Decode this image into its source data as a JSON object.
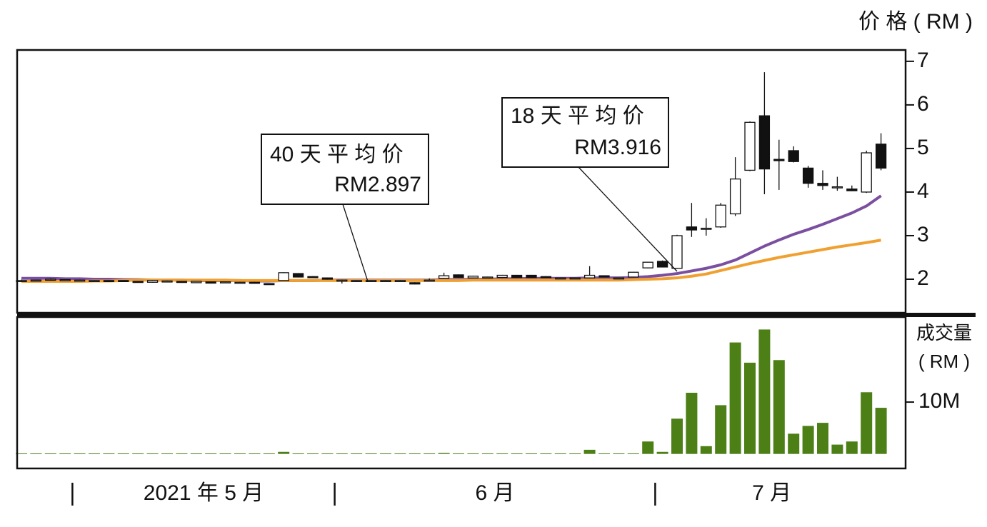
{
  "chart_data": {
    "type": "candlestick",
    "price_axis_label": "价 格 ( RM )",
    "volume_axis_label": [
      "成交量",
      "( RM )"
    ],
    "categories": [
      null,
      null,
      null,
      null,
      null,
      null,
      null,
      null,
      null,
      null,
      null,
      null,
      null,
      null,
      null,
      null,
      null,
      null,
      null,
      null,
      null,
      null,
      null,
      null,
      null,
      null,
      null,
      null,
      null,
      null,
      null,
      null,
      null,
      null,
      null,
      null,
      null,
      null,
      null,
      null,
      null,
      null,
      null,
      null,
      null,
      null,
      null,
      null,
      null,
      null,
      null,
      null,
      null,
      null,
      null,
      null,
      null,
      null,
      null,
      null
    ],
    "periods": [
      {
        "label": "2021 年 5 月",
        "from": 4,
        "to": 21
      },
      {
        "label": "6 月",
        "from": 22,
        "to": 43
      },
      {
        "label": "7 月",
        "from": 44,
        "to": 59
      }
    ],
    "open": [
      1.97,
      1.98,
      2.0,
      1.99,
      1.98,
      1.97,
      1.97,
      1.97,
      1.95,
      1.93,
      1.96,
      1.95,
      1.92,
      1.94,
      1.94,
      1.93,
      1.93,
      1.9,
      1.97,
      2.13,
      2.06,
      2.03,
      1.98,
      1.97,
      1.97,
      1.97,
      1.97,
      1.92,
      1.98,
      2.02,
      2.1,
      2.03,
      2.04,
      2.04,
      2.09,
      2.09,
      2.06,
      2.03,
      2.03,
      2.03,
      2.08,
      2.03,
      2.05,
      2.26,
      2.41,
      2.25,
      3.2,
      3.15,
      3.2,
      3.5,
      4.5,
      5.75,
      4.75,
      4.95,
      4.55,
      4.2,
      4.12,
      4.07,
      4.0,
      5.1
    ],
    "high": [
      1.99,
      1.99,
      2.02,
      2.0,
      1.99,
      1.98,
      1.98,
      1.98,
      1.96,
      1.98,
      1.97,
      1.96,
      1.96,
      1.95,
      1.95,
      1.94,
      1.94,
      1.91,
      2.16,
      2.14,
      2.07,
      2.04,
      1.99,
      1.98,
      1.98,
      1.98,
      1.98,
      1.93,
      2.02,
      2.15,
      2.11,
      2.08,
      2.06,
      2.1,
      2.1,
      2.1,
      2.07,
      2.04,
      2.04,
      2.3,
      2.09,
      2.04,
      2.17,
      2.4,
      2.43,
      3.02,
      3.75,
      3.4,
      3.75,
      4.8,
      5.62,
      6.75,
      5.2,
      5.05,
      4.6,
      4.5,
      4.35,
      4.15,
      4.95,
      5.35
    ],
    "low": [
      1.96,
      1.97,
      1.98,
      1.98,
      1.97,
      1.96,
      1.95,
      1.95,
      1.93,
      1.92,
      1.95,
      1.92,
      1.91,
      1.9,
      1.93,
      1.92,
      1.9,
      1.87,
      1.96,
      2.04,
      2.03,
      1.99,
      1.9,
      1.96,
      1.96,
      1.96,
      1.96,
      1.88,
      1.97,
      2.01,
      2.03,
      2.02,
      2.03,
      2.03,
      2.03,
      2.03,
      2.03,
      2.02,
      2.02,
      2.02,
      2.04,
      2.02,
      2.04,
      2.25,
      2.27,
      2.24,
      2.97,
      3.0,
      3.18,
      3.45,
      4.48,
      3.95,
      4.05,
      4.68,
      4.1,
      4.05,
      4.03,
      4.02,
      3.98,
      4.5
    ],
    "close": [
      1.97,
      1.98,
      2.0,
      1.99,
      1.98,
      1.97,
      1.96,
      1.96,
      1.94,
      1.97,
      1.96,
      1.93,
      1.95,
      1.91,
      1.94,
      1.93,
      1.91,
      1.88,
      2.15,
      2.05,
      2.04,
      2.0,
      1.98,
      1.97,
      1.97,
      1.97,
      1.97,
      1.89,
      1.98,
      2.08,
      2.04,
      2.07,
      2.05,
      2.09,
      2.04,
      2.04,
      2.04,
      2.03,
      2.03,
      2.09,
      2.05,
      2.03,
      2.16,
      2.39,
      2.28,
      3.0,
      3.13,
      3.17,
      3.7,
      4.3,
      5.6,
      4.53,
      4.72,
      4.7,
      4.2,
      4.15,
      4.12,
      4.03,
      4.9,
      4.55
    ],
    "series": [
      {
        "name": "18 天平均价",
        "color": "#7b4fa0",
        "values": [
          2.02,
          2.02,
          2.02,
          2.01,
          2.01,
          2.0,
          2.0,
          1.99,
          1.99,
          1.98,
          1.98,
          1.98,
          1.97,
          1.97,
          1.97,
          1.97,
          1.96,
          1.96,
          1.97,
          1.97,
          1.97,
          1.98,
          1.98,
          1.98,
          1.98,
          1.98,
          1.98,
          1.98,
          1.98,
          1.99,
          1.99,
          2.0,
          2.0,
          2.01,
          2.01,
          2.02,
          2.02,
          2.02,
          2.02,
          2.03,
          2.03,
          2.03,
          2.04,
          2.06,
          2.09,
          2.13,
          2.19,
          2.25,
          2.33,
          2.44,
          2.6,
          2.76,
          2.9,
          3.03,
          3.14,
          3.26,
          3.39,
          3.52,
          3.68,
          3.916
        ]
      },
      {
        "name": "40 天平均价",
        "color": "#f0a030",
        "values": [
          1.95,
          1.95,
          1.95,
          1.95,
          1.95,
          1.96,
          1.96,
          1.97,
          1.98,
          1.98,
          1.98,
          1.98,
          1.98,
          1.98,
          1.98,
          1.97,
          1.97,
          1.97,
          1.97,
          1.97,
          1.97,
          1.97,
          1.97,
          1.97,
          1.97,
          1.97,
          1.97,
          1.97,
          1.97,
          1.97,
          1.97,
          1.98,
          1.98,
          1.98,
          1.98,
          1.98,
          1.98,
          1.98,
          1.98,
          1.98,
          1.98,
          1.98,
          1.99,
          2.0,
          2.01,
          2.03,
          2.07,
          2.12,
          2.2,
          2.28,
          2.36,
          2.43,
          2.5,
          2.56,
          2.62,
          2.68,
          2.74,
          2.79,
          2.84,
          2.897
        ]
      }
    ],
    "ylim": [
      1.23,
      7.26
    ],
    "yticks": [
      2,
      3,
      4,
      5,
      6,
      7
    ],
    "volume": [
      0.1,
      0.1,
      0.1,
      0.1,
      0.1,
      0.1,
      0.1,
      0.1,
      0.1,
      0.1,
      0.1,
      0.1,
      0.1,
      0.1,
      0.1,
      0.1,
      0.1,
      0.1,
      0.4,
      0.1,
      0.1,
      0.1,
      0.1,
      0.1,
      0.1,
      0.1,
      0.1,
      0.1,
      0.1,
      0.2,
      0.1,
      0.1,
      0.1,
      0.1,
      0.1,
      0.1,
      0.1,
      0.1,
      0.1,
      0.8,
      0.1,
      0.1,
      0.1,
      2.4,
      0.4,
      6.8,
      11.8,
      1.5,
      9.4,
      21.5,
      17.6,
      24.0,
      18.1,
      3.9,
      5.4,
      6.0,
      1.8,
      2.4,
      11.9,
      8.9
    ],
    "volume_color": "#4d7f17",
    "volume_ylim": [
      -2.8,
      26.4
    ],
    "volume_yticks": [
      {
        "value": 10,
        "label": "10M"
      }
    ],
    "annotations": [
      {
        "lines": [
          "40 天 平 均 价",
          "RM2.897"
        ]
      },
      {
        "lines": [
          "18 天 平 均 价",
          "RM3.916"
        ]
      }
    ]
  }
}
